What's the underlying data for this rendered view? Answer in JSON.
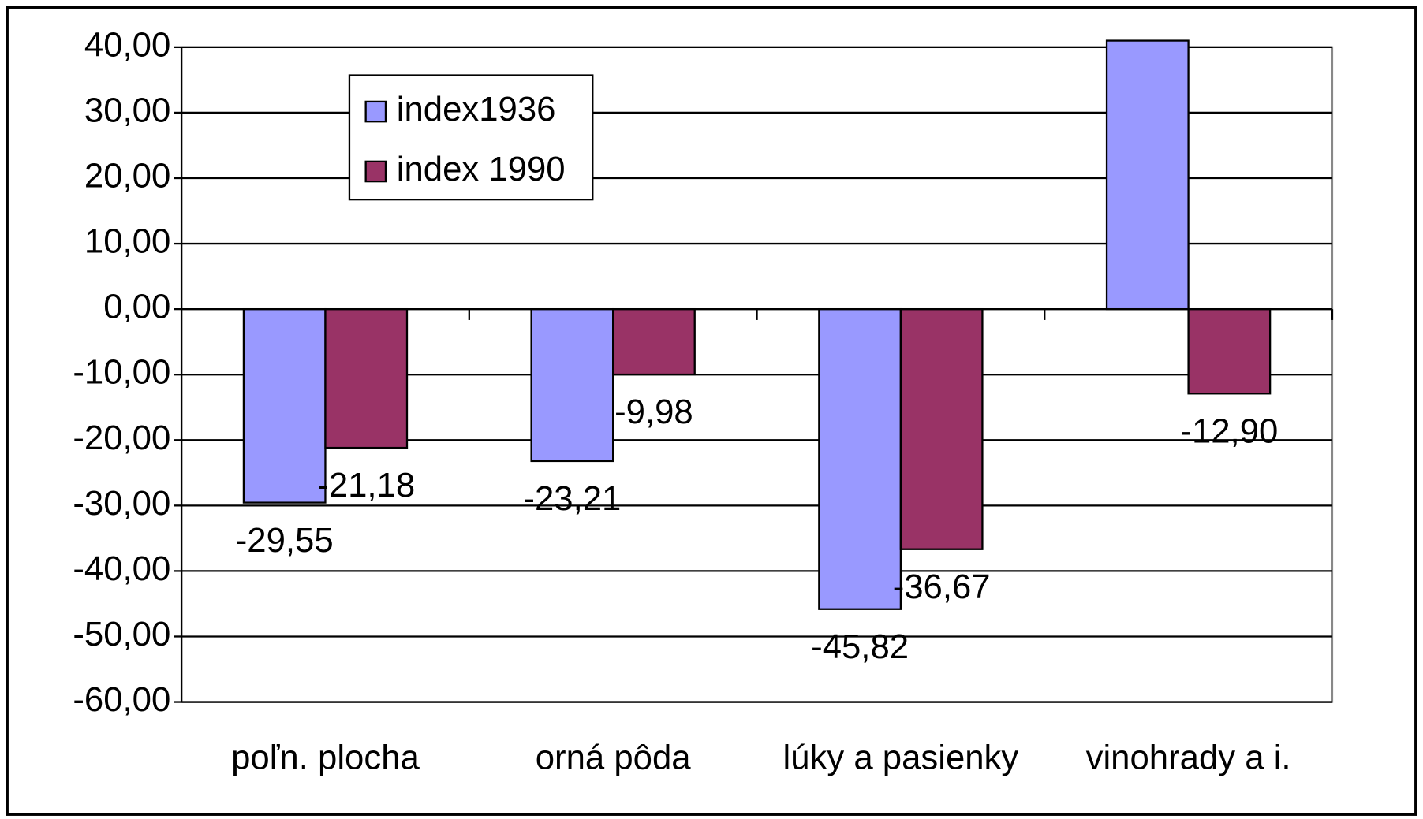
{
  "chart_data": {
    "type": "bar",
    "categories": [
      "poľn. plocha",
      "orná pôda",
      "lúky a pasienky",
      "vinohrady a i."
    ],
    "series": [
      {
        "name": "index1936",
        "color": "#9999ff",
        "values": [
          -29.55,
          -23.21,
          -45.82,
          41
        ],
        "value_labels": [
          "-29,55",
          "-23,21",
          "-45,82",
          null
        ]
      },
      {
        "name": "index 1990",
        "color": "#993366",
        "values": [
          -21.18,
          -9.98,
          -36.67,
          -12.9
        ],
        "value_labels": [
          "-21,18",
          "-9,98",
          "-36,67",
          "-12,90"
        ]
      }
    ],
    "ylim": [
      -60,
      40
    ],
    "yticks": [
      {
        "value": -60,
        "label": "-60,00"
      },
      {
        "value": -50,
        "label": "-50,00"
      },
      {
        "value": -40,
        "label": "-40,00"
      },
      {
        "value": -30,
        "label": "-30,00"
      },
      {
        "value": -20,
        "label": "-20,00"
      },
      {
        "value": -10,
        "label": "-10,00"
      },
      {
        "value": 0,
        "label": "0,00"
      },
      {
        "value": 10,
        "label": "10,00"
      },
      {
        "value": 20,
        "label": "20,00"
      },
      {
        "value": 30,
        "label": "30,00"
      },
      {
        "value": 40,
        "label": "40,00"
      }
    ],
    "grid": true,
    "legend": "top-left"
  }
}
